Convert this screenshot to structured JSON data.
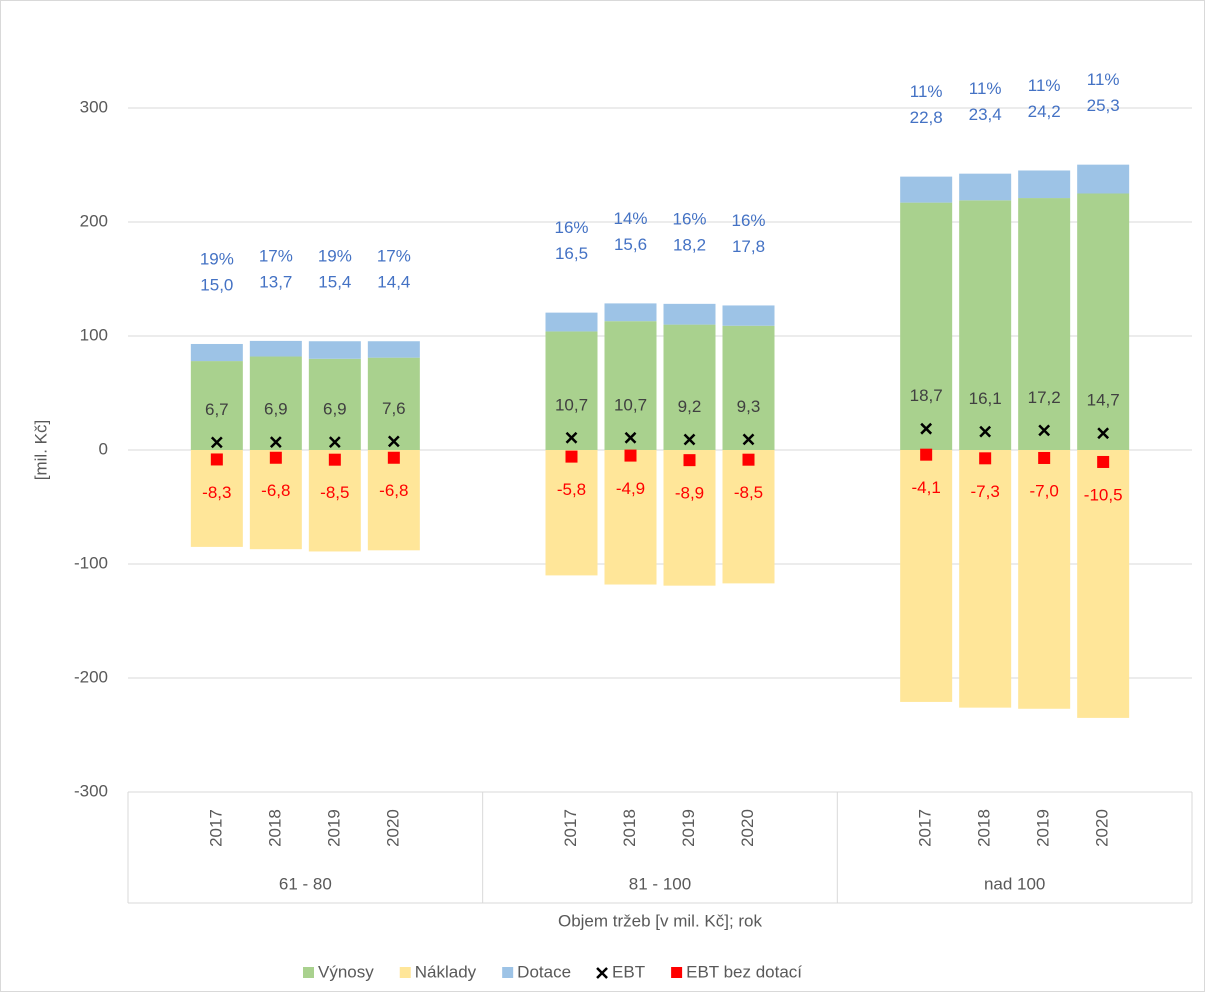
{
  "chart_data": {
    "type": "bar",
    "y_axis_label": "[mil. Kč]",
    "x_axis_label": "Objem tržeb [v mil. Kč]; rok",
    "groups": [
      "61 - 80",
      "81 - 100",
      "nad 100"
    ],
    "categories": [
      "2017",
      "2018",
      "2019",
      "2020",
      "2017",
      "2018",
      "2019",
      "2020",
      "2017",
      "2018",
      "2019",
      "2020"
    ],
    "ylim": [
      -300,
      300
    ],
    "yticks": [
      -300,
      -200,
      -100,
      0,
      100,
      200,
      300
    ],
    "grid": true,
    "legend": "bottom",
    "series": [
      {
        "name": "Výnosy",
        "color": "#a9d18e",
        "marker": "bar",
        "values": [
          78,
          82,
          80,
          81,
          104,
          113,
          110,
          109,
          217,
          219,
          221,
          225
        ]
      },
      {
        "name": "Náklady",
        "color": "#ffe699",
        "marker": "bar",
        "values": [
          -85,
          -87,
          -89,
          -88,
          -110,
          -118,
          -119,
          -117,
          -221,
          -226,
          -227,
          -235
        ]
      },
      {
        "name": "Dotace",
        "color": "#9dc3e6",
        "marker": "bar",
        "label_color": "#4472c4",
        "values": [
          15.0,
          13.7,
          15.4,
          14.4,
          16.5,
          15.6,
          18.2,
          17.8,
          22.8,
          23.4,
          24.2,
          25.3
        ],
        "value_labels": [
          "15,0",
          "13,7",
          "15,4",
          "14,4",
          "16,5",
          "15,6",
          "18,2",
          "17,8",
          "22,8",
          "23,4",
          "24,2",
          "25,3"
        ],
        "share": {
          "values": [
            19,
            17,
            19,
            17,
            16,
            14,
            16,
            16,
            11,
            11,
            11,
            11
          ],
          "value_labels": [
            "19%",
            "17%",
            "19%",
            "17%",
            "16%",
            "14%",
            "16%",
            "16%",
            "11%",
            "11%",
            "11%",
            "11%"
          ]
        }
      },
      {
        "name": "EBT",
        "color": "#000000",
        "marker": "x",
        "label_color": "#404040",
        "values": [
          6.7,
          6.9,
          6.9,
          7.6,
          10.7,
          10.7,
          9.2,
          9.3,
          18.7,
          16.1,
          17.2,
          14.7
        ],
        "value_labels": [
          "6,7",
          "6,9",
          "6,9",
          "7,6",
          "10,7",
          "10,7",
          "9,2",
          "9,3",
          "18,7",
          "16,1",
          "17,2",
          "14,7"
        ]
      },
      {
        "name": "EBT bez dotací",
        "color": "#ff0000",
        "marker": "square",
        "label_color": "#ff0000",
        "values": [
          -8.3,
          -6.8,
          -8.5,
          -6.8,
          -5.8,
          -4.9,
          -8.9,
          -8.5,
          -4.1,
          -7.3,
          -7.0,
          -10.5
        ],
        "value_labels": [
          "-8,3",
          "-6,8",
          "-8,5",
          "-6,8",
          "-5,8",
          "-4,9",
          "-8,9",
          "-8,5",
          "-4,1",
          "-7,3",
          "-7,0",
          "-10,5"
        ]
      }
    ]
  }
}
